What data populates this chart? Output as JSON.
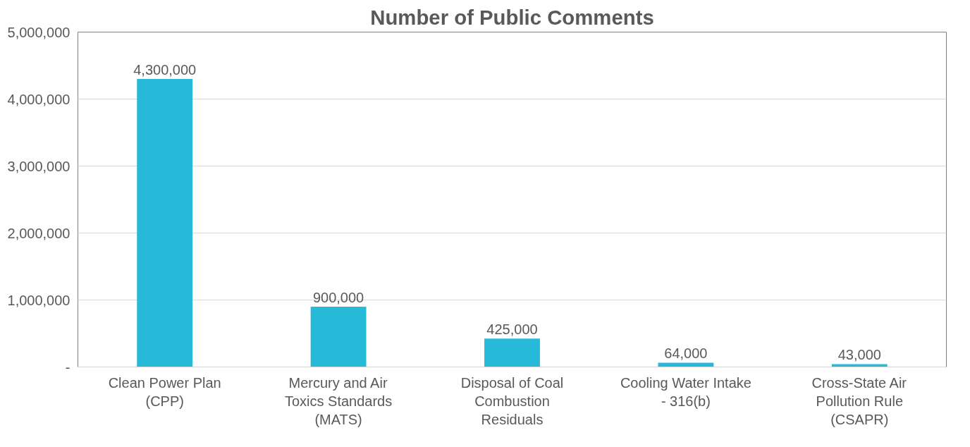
{
  "chart_data": {
    "type": "bar",
    "title": "Number of Public Comments",
    "categories": [
      "Clean Power Plan\n(CPP)",
      "Mercury and Air\nToxics Standards\n(MATS)",
      "Disposal of Coal\nCombustion\nResiduals",
      "Cooling Water Intake\n- 316(b)",
      "Cross-State Air\nPollution Rule\n(CSAPR)"
    ],
    "values": [
      4300000,
      900000,
      425000,
      64000,
      43000
    ],
    "color": "#26bad8",
    "ylim": [
      0,
      5000000
    ],
    "yticks": [
      {
        "value": 0,
        "label": "-"
      },
      {
        "value": 1000000,
        "label": "1,000,000"
      },
      {
        "value": 2000000,
        "label": "2,000,000"
      },
      {
        "value": 3000000,
        "label": "3,000,000"
      },
      {
        "value": 4000000,
        "label": "4,000,000"
      },
      {
        "value": 5000000,
        "label": "5,000,000"
      }
    ],
    "value_labels": [
      "4,300,000",
      "900,000",
      "425,000",
      "64,000",
      "43,000"
    ],
    "grid": "y"
  }
}
